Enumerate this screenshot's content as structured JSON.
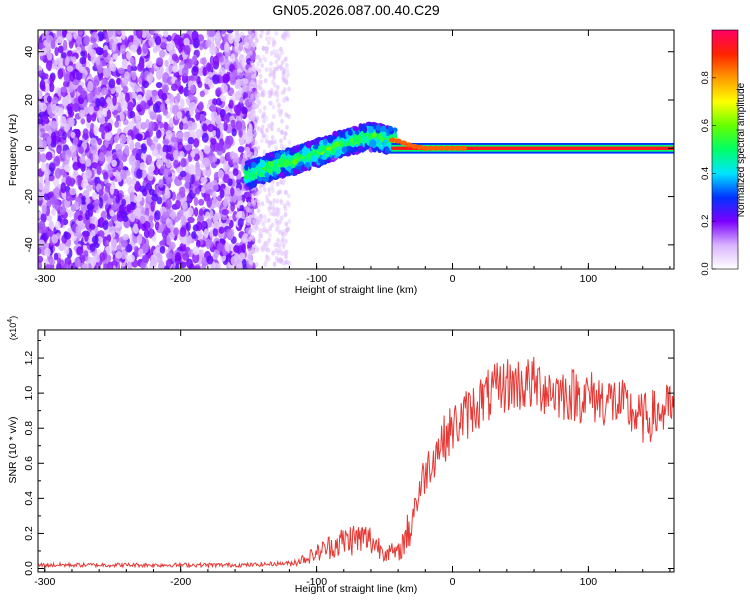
{
  "title": "GN05.2026.087.00.40.C29",
  "chart_data": [
    {
      "type": "heatmap",
      "name": "spectrogram",
      "xlabel": "Height of straight line (km)",
      "ylabel": "Frequency (Hz)",
      "xlim": [
        -305,
        163
      ],
      "ylim": [
        -50,
        49
      ],
      "xticks": [
        -300,
        -200,
        -100,
        0,
        100
      ],
      "xtick_labels": [
        "-300",
        "-200",
        "-100",
        "0",
        "100"
      ],
      "yticks": [
        -40,
        -20,
        0,
        20,
        40
      ],
      "ytick_labels": [
        "-40",
        "-20",
        "0",
        "20",
        "40"
      ],
      "colorbar": {
        "label": "Normalized spectral amplitude",
        "range": [
          0,
          1
        ],
        "ticks": [
          0.0,
          0.2,
          0.4,
          0.6,
          0.8
        ],
        "tick_labels": [
          "0.0",
          "0.2",
          "0.4",
          "0.6",
          "0.8"
        ]
      },
      "ridge": {
        "description_points_x": [
          -150,
          -130,
          -110,
          -90,
          -75,
          -62,
          -50,
          -40,
          -30,
          -20,
          -10,
          0,
          50,
          100,
          163
        ],
        "description_points_y": [
          -11,
          -7,
          -4,
          0,
          3,
          5,
          4,
          3,
          1,
          0,
          0,
          0,
          0,
          0,
          0
        ]
      }
    },
    {
      "type": "line",
      "name": "snr",
      "xlabel": "Height of straight line (km)",
      "ylabel": "SNR (10 * v/v)",
      "y_multiplier_label": "(x10",
      "y_multiplier_exp": "4",
      "y_multiplier_close": ")",
      "xlim": [
        -305,
        163
      ],
      "ylim": [
        -0.02,
        1.36
      ],
      "xticks": [
        -300,
        -200,
        -100,
        0,
        100
      ],
      "xtick_labels": [
        "-300",
        "-200",
        "-100",
        "0",
        "100"
      ],
      "yticks": [
        0.0,
        0.2,
        0.4,
        0.6,
        0.8,
        1.0,
        1.2
      ],
      "ytick_labels": [
        "0.0",
        "0.2",
        "0.4",
        "0.6",
        "0.8",
        "1.0",
        "1.2"
      ],
      "series": [
        {
          "name": "SNR",
          "color": "#e53935",
          "envelope_x": [
            -305,
            -150,
            -120,
            -105,
            -90,
            -75,
            -62,
            -50,
            -40,
            -30,
            -20,
            -10,
            0,
            20,
            40,
            60,
            80,
            100,
            120,
            140,
            163
          ],
          "envelope_y": [
            0.02,
            0.02,
            0.03,
            0.08,
            0.15,
            0.2,
            0.2,
            0.12,
            0.1,
            0.3,
            0.55,
            0.7,
            0.8,
            0.95,
            1.05,
            1.05,
            1.0,
            0.98,
            0.95,
            0.85,
            0.92
          ]
        }
      ]
    }
  ]
}
